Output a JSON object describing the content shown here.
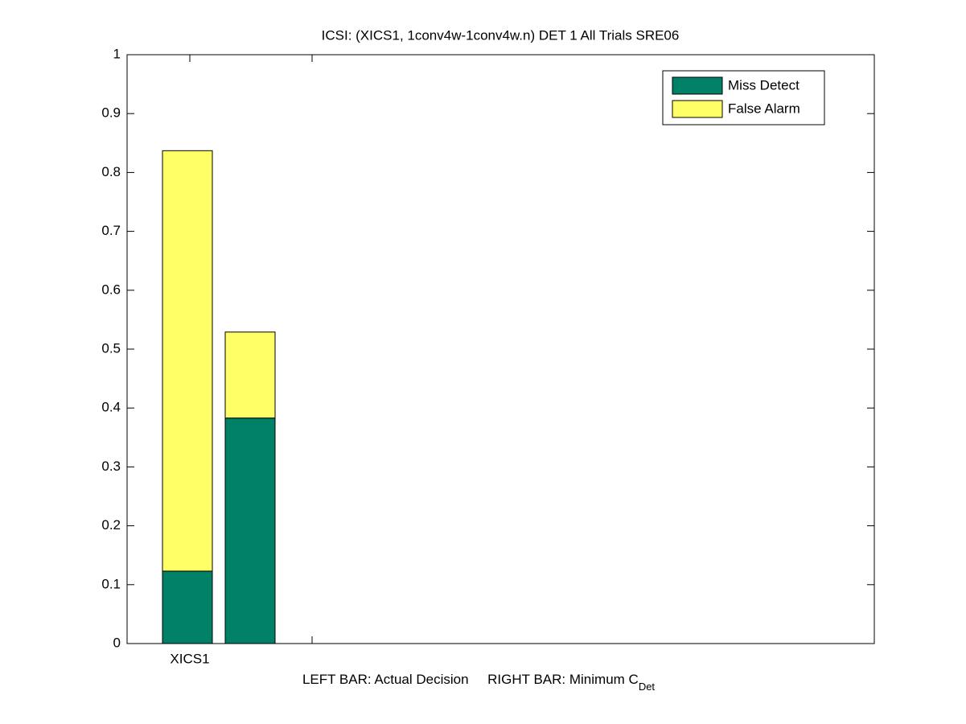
{
  "chart_data": {
    "type": "stacked_bar",
    "title": "ICSI: (XICS1, 1conv4w-1conv4w.n) DET 1 All Trials SRE06",
    "categories": [
      "XICS1",
      null
    ],
    "series": [
      {
        "name": "Miss Detect",
        "color": "#008066",
        "values": [
          0.123,
          0.383
        ]
      },
      {
        "name": "False Alarm",
        "color": "#ffff66",
        "values": [
          0.714,
          0.146
        ]
      }
    ],
    "xlabel": "LEFT BAR: Actual Decision     RIGHT BAR: Minimum C",
    "xlabel_subscript": "Det",
    "ylim": [
      0,
      1
    ],
    "yticks": [
      0,
      0.1,
      0.2,
      0.3,
      0.4,
      0.5,
      0.6,
      0.7,
      0.8,
      0.9,
      1
    ],
    "legend": "top-right"
  }
}
